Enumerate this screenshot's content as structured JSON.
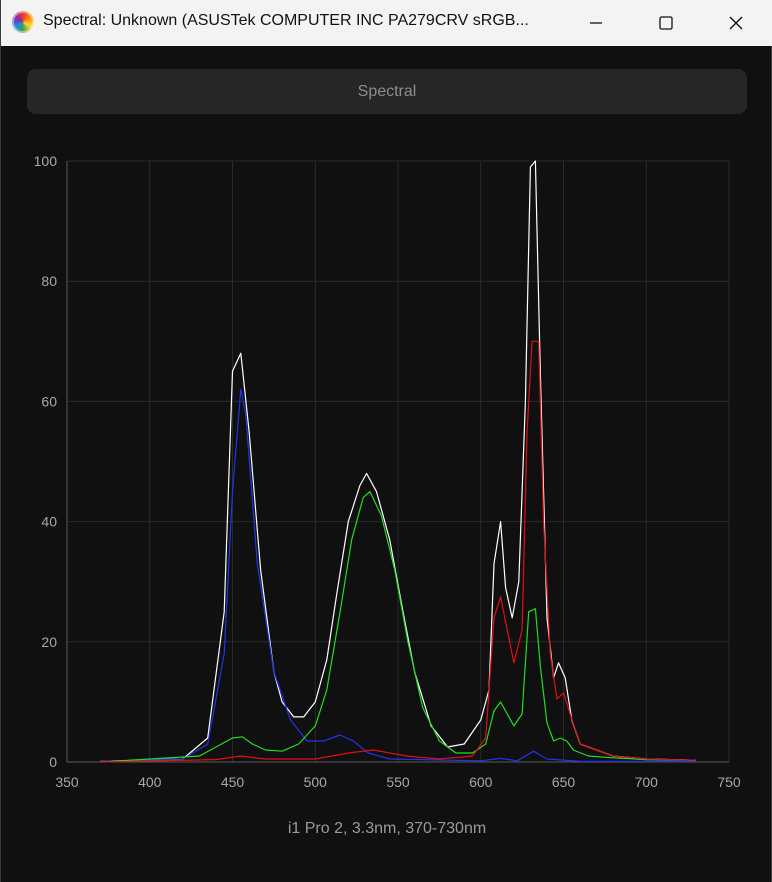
{
  "window": {
    "title": "Spectral: Unknown (ASUSTek COMPUTER INC PA279CRV sRGB...",
    "icon": "calibration-app-icon"
  },
  "toolbar": {
    "spectral_label": "Spectral"
  },
  "footer": {
    "label": "i1 Pro 2, 3.3nm, 370-730nm"
  },
  "chart_data": {
    "type": "line",
    "xlim": [
      350,
      750
    ],
    "ylim": [
      0,
      100
    ],
    "x_ticks": [
      350,
      400,
      450,
      500,
      550,
      600,
      650,
      700,
      750
    ],
    "y_ticks": [
      0,
      20,
      40,
      60,
      80,
      100
    ],
    "grid": true,
    "series": [
      {
        "color": "#ffffff",
        "points": [
          [
            370,
            0.1
          ],
          [
            420,
            0.5
          ],
          [
            435,
            4
          ],
          [
            445,
            25
          ],
          [
            450,
            65
          ],
          [
            455,
            68
          ],
          [
            460,
            55
          ],
          [
            467,
            32
          ],
          [
            475,
            15
          ],
          [
            480,
            10
          ],
          [
            487,
            7.5
          ],
          [
            493,
            7.5
          ],
          [
            500,
            10
          ],
          [
            507,
            17
          ],
          [
            513,
            28
          ],
          [
            520,
            40
          ],
          [
            527,
            46
          ],
          [
            531,
            48
          ],
          [
            537,
            45
          ],
          [
            545,
            37
          ],
          [
            553,
            25
          ],
          [
            560,
            15
          ],
          [
            570,
            6
          ],
          [
            580,
            2.5
          ],
          [
            590,
            3
          ],
          [
            600,
            7
          ],
          [
            605,
            12
          ],
          [
            608,
            33
          ],
          [
            612,
            40
          ],
          [
            615,
            29
          ],
          [
            619,
            24
          ],
          [
            623,
            30
          ],
          [
            627,
            60
          ],
          [
            630,
            99
          ],
          [
            633,
            100
          ],
          [
            636,
            65
          ],
          [
            640,
            24
          ],
          [
            644,
            14
          ],
          [
            647,
            16.5
          ],
          [
            651,
            14
          ],
          [
            655,
            7
          ],
          [
            660,
            3
          ],
          [
            670,
            2
          ],
          [
            680,
            1
          ],
          [
            700,
            0.5
          ],
          [
            730,
            0.3
          ]
        ]
      },
      {
        "color": "#2233ee",
        "points": [
          [
            370,
            0.1
          ],
          [
            420,
            0.5
          ],
          [
            435,
            3
          ],
          [
            445,
            18
          ],
          [
            450,
            45
          ],
          [
            455,
            62
          ],
          [
            458,
            58
          ],
          [
            465,
            33
          ],
          [
            475,
            15
          ],
          [
            485,
            7
          ],
          [
            495,
            3.5
          ],
          [
            505,
            3.5
          ],
          [
            515,
            4.5
          ],
          [
            523,
            3.5
          ],
          [
            532,
            1.5
          ],
          [
            545,
            0.5
          ],
          [
            600,
            0.2
          ],
          [
            612,
            0.6
          ],
          [
            622,
            0.2
          ],
          [
            632,
            1.8
          ],
          [
            640,
            0.5
          ],
          [
            660,
            0.1
          ],
          [
            730,
            0.1
          ]
        ]
      },
      {
        "color": "#22dd22",
        "points": [
          [
            370,
            0
          ],
          [
            430,
            1
          ],
          [
            440,
            2.5
          ],
          [
            450,
            4
          ],
          [
            456,
            4.2
          ],
          [
            462,
            3
          ],
          [
            470,
            2
          ],
          [
            480,
            1.8
          ],
          [
            490,
            3
          ],
          [
            500,
            6
          ],
          [
            507,
            12
          ],
          [
            515,
            25
          ],
          [
            522,
            37
          ],
          [
            529,
            44
          ],
          [
            533,
            45
          ],
          [
            540,
            41
          ],
          [
            548,
            32
          ],
          [
            556,
            20
          ],
          [
            565,
            9
          ],
          [
            575,
            3.5
          ],
          [
            585,
            1.5
          ],
          [
            595,
            1.5
          ],
          [
            603,
            3
          ],
          [
            608,
            8.5
          ],
          [
            612,
            10
          ],
          [
            617,
            7.5
          ],
          [
            620,
            6
          ],
          [
            625,
            8
          ],
          [
            629,
            25
          ],
          [
            633,
            25.5
          ],
          [
            636,
            16
          ],
          [
            640,
            6.5
          ],
          [
            644,
            3.5
          ],
          [
            648,
            4
          ],
          [
            652,
            3.5
          ],
          [
            656,
            2
          ],
          [
            665,
            1
          ],
          [
            680,
            0.7
          ],
          [
            700,
            0.4
          ],
          [
            730,
            0.3
          ]
        ]
      },
      {
        "color": "#dd1111",
        "points": [
          [
            370,
            0
          ],
          [
            440,
            0.4
          ],
          [
            455,
            1
          ],
          [
            470,
            0.5
          ],
          [
            500,
            0.5
          ],
          [
            520,
            1.5
          ],
          [
            535,
            2
          ],
          [
            555,
            1
          ],
          [
            575,
            0.5
          ],
          [
            595,
            1
          ],
          [
            603,
            4
          ],
          [
            608,
            24
          ],
          [
            612,
            27.5
          ],
          [
            616,
            22
          ],
          [
            620,
            16.5
          ],
          [
            625,
            22
          ],
          [
            628,
            55
          ],
          [
            631,
            70
          ],
          [
            635,
            70
          ],
          [
            638,
            40
          ],
          [
            642,
            18
          ],
          [
            646,
            10.5
          ],
          [
            650,
            11.5
          ],
          [
            654,
            8
          ],
          [
            660,
            3
          ],
          [
            670,
            2
          ],
          [
            680,
            1
          ],
          [
            700,
            0.5
          ],
          [
            730,
            0.3
          ]
        ]
      }
    ]
  }
}
